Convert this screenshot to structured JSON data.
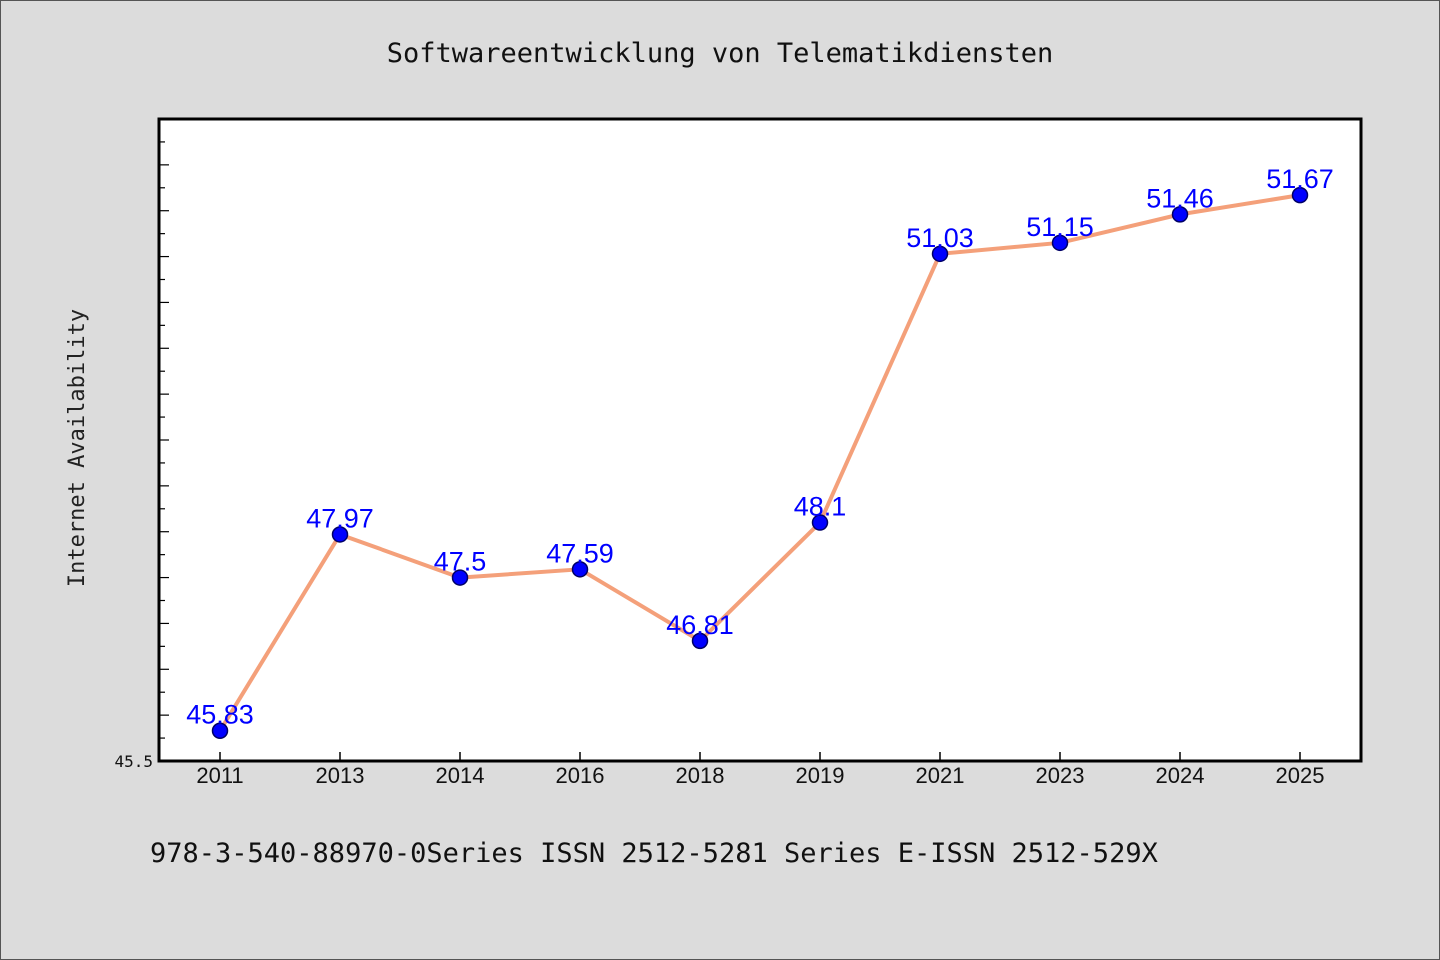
{
  "chart_data": {
    "type": "line",
    "title": "Softwareentwicklung von Telematikdiensten",
    "xlabel": "",
    "ylabel": "Internet Availability",
    "categories": [
      "2011",
      "2013",
      "2014",
      "2016",
      "2018",
      "2019",
      "2021",
      "2023",
      "2024",
      "2025"
    ],
    "series": [
      {
        "values": [
          45.83,
          47.97,
          47.5,
          47.59,
          46.81,
          48.1,
          51.03,
          51.15,
          51.46,
          51.67
        ],
        "labels": [
          "45.83",
          "47.97",
          "47.5",
          "47.59",
          "46.81",
          "48.1",
          "51.03",
          "51.15",
          "51.46",
          "51.67"
        ]
      }
    ],
    "ylim": [
      45.5,
      52.5
    ],
    "yticks_labeled": [
      "45.5"
    ],
    "grid": false,
    "legend": "none",
    "colors": {
      "line": "#f4a07a",
      "marker": "#0000ff",
      "marker_edge": "#000066",
      "data_label": "#0000ff",
      "plot_background": "#ffffff",
      "figure_background": "#dcdcdc"
    }
  },
  "caption": "978-3-540-88970-0Series ISSN 2512-5281 Series E-ISSN 2512-529X"
}
